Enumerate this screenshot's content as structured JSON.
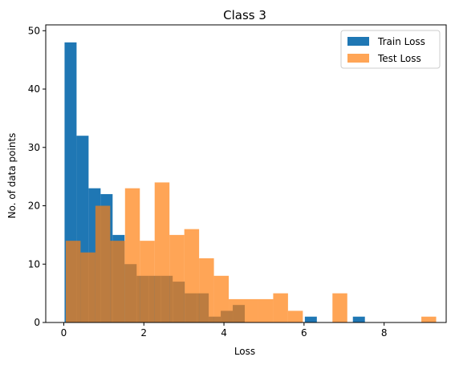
{
  "chart_data": {
    "type": "bar",
    "title": "Class 3",
    "xlabel": "Loss",
    "ylabel": "No. of data points",
    "xlim": [
      -0.45,
      9.55
    ],
    "ylim": [
      0,
      51
    ],
    "xticks": [
      0,
      2,
      4,
      6,
      8
    ],
    "yticks": [
      0,
      10,
      20,
      30,
      40,
      50
    ],
    "grid": false,
    "legend_position": "top-right",
    "series": [
      {
        "name": "Train Loss",
        "color": "#1f77b4",
        "opacity": 1.0,
        "bins": [
          {
            "x0": 0.02,
            "x1": 0.32,
            "count": 48
          },
          {
            "x0": 0.32,
            "x1": 0.62,
            "count": 32
          },
          {
            "x0": 0.62,
            "x1": 0.92,
            "count": 23
          },
          {
            "x0": 0.92,
            "x1": 1.22,
            "count": 22
          },
          {
            "x0": 1.22,
            "x1": 1.52,
            "count": 15
          },
          {
            "x0": 1.52,
            "x1": 1.82,
            "count": 10
          },
          {
            "x0": 1.82,
            "x1": 2.12,
            "count": 8
          },
          {
            "x0": 2.12,
            "x1": 2.42,
            "count": 8
          },
          {
            "x0": 2.42,
            "x1": 2.72,
            "count": 8
          },
          {
            "x0": 2.72,
            "x1": 3.02,
            "count": 7
          },
          {
            "x0": 3.02,
            "x1": 3.32,
            "count": 5
          },
          {
            "x0": 3.32,
            "x1": 3.62,
            "count": 5
          },
          {
            "x0": 3.62,
            "x1": 3.92,
            "count": 1
          },
          {
            "x0": 3.92,
            "x1": 4.22,
            "count": 2
          },
          {
            "x0": 4.22,
            "x1": 4.52,
            "count": 3
          },
          {
            "x0": 6.02,
            "x1": 6.32,
            "count": 1
          },
          {
            "x0": 7.22,
            "x1": 7.52,
            "count": 1
          }
        ]
      },
      {
        "name": "Test Loss",
        "color": "#ff7f0e",
        "opacity": 0.7,
        "bins": [
          {
            "x0": 0.05,
            "x1": 0.42,
            "count": 14
          },
          {
            "x0": 0.42,
            "x1": 0.79,
            "count": 12
          },
          {
            "x0": 0.79,
            "x1": 1.16,
            "count": 20
          },
          {
            "x0": 1.16,
            "x1": 1.53,
            "count": 14
          },
          {
            "x0": 1.53,
            "x1": 1.9,
            "count": 23
          },
          {
            "x0": 1.9,
            "x1": 2.27,
            "count": 14
          },
          {
            "x0": 2.27,
            "x1": 2.64,
            "count": 24
          },
          {
            "x0": 2.64,
            "x1": 3.01,
            "count": 15
          },
          {
            "x0": 3.01,
            "x1": 3.38,
            "count": 16
          },
          {
            "x0": 3.38,
            "x1": 3.75,
            "count": 11
          },
          {
            "x0": 3.75,
            "x1": 4.12,
            "count": 8
          },
          {
            "x0": 4.12,
            "x1": 4.49,
            "count": 4
          },
          {
            "x0": 4.49,
            "x1": 4.86,
            "count": 4
          },
          {
            "x0": 4.86,
            "x1": 5.23,
            "count": 4
          },
          {
            "x0": 5.23,
            "x1": 5.6,
            "count": 5
          },
          {
            "x0": 5.6,
            "x1": 5.97,
            "count": 2
          },
          {
            "x0": 6.71,
            "x1": 7.08,
            "count": 5
          },
          {
            "x0": 8.93,
            "x1": 9.3,
            "count": 1
          }
        ]
      }
    ]
  }
}
